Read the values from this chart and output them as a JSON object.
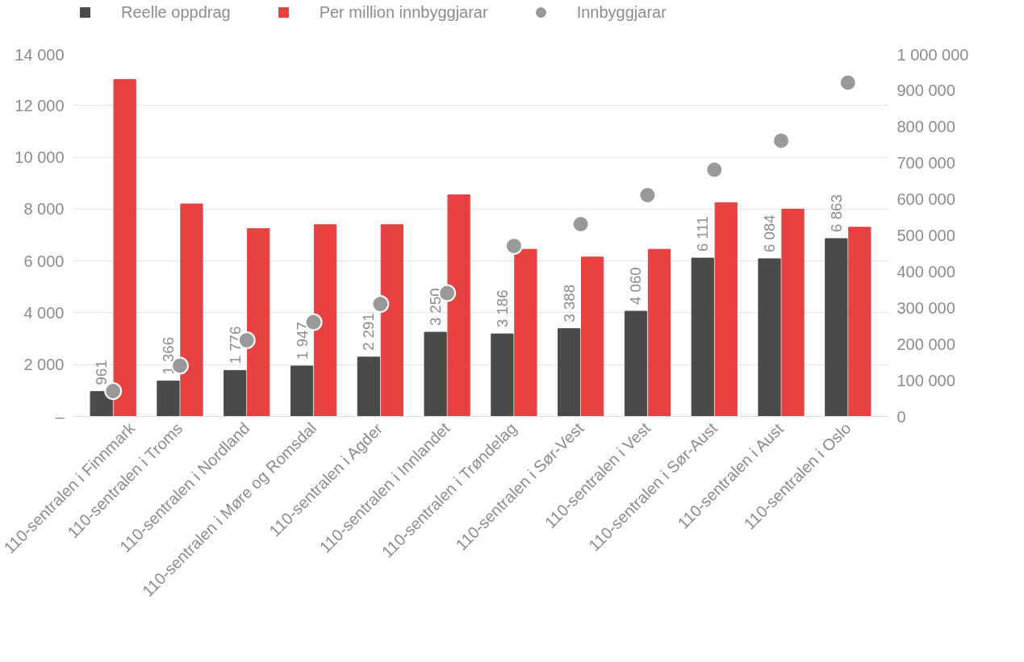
{
  "chart_data": {
    "type": "bar",
    "categories": [
      "110-sentralen i Finnmark",
      "110-sentralen i Troms",
      "110-sentralen i Nordland",
      "110-sentralen i Møre og Romsdal",
      "110-sentralen i Agder",
      "110-sentralen i Innlandet",
      "110-sentralen i Trøndelag",
      "110-sentralen i Sør-Vest",
      "110-sentralen i Vest",
      "110-sentralen i Sør-Aust",
      "110-sentralen i Aust",
      "110-sentralen i Oslo"
    ],
    "series": [
      {
        "name": "Reelle oppdrag",
        "color": "#4a4a48",
        "values": [
          961,
          1366,
          1776,
          1947,
          2291,
          3250,
          3186,
          3388,
          4060,
          6111,
          6084,
          6863
        ],
        "value_labels": [
          "961",
          "1 366",
          "1 776",
          "1 947",
          "2 291",
          "3 250",
          "3 186",
          "3 388",
          "4 060",
          "6 111",
          "6 084",
          "6 863"
        ]
      },
      {
        "name": "Per million innbyggjarar",
        "color": "#e84142",
        "values": [
          13000,
          8200,
          7250,
          7400,
          7400,
          8550,
          6450,
          6150,
          6450,
          8250,
          8000,
          7300
        ]
      },
      {
        "name": "Innbyggjarar",
        "color": "#999999",
        "type": "scatter",
        "axis": "y2",
        "marker": "circle",
        "values": [
          70000,
          140000,
          210000,
          260000,
          310000,
          340000,
          470000,
          530000,
          610000,
          680000,
          760000,
          920000
        ]
      }
    ],
    "ylim": [
      0,
      14000
    ],
    "yticks": [
      {
        "value": 0,
        "label": "–"
      },
      {
        "value": 2000,
        "label": "2 000"
      },
      {
        "value": 4000,
        "label": "4 000"
      },
      {
        "value": 6000,
        "label": "6 000"
      },
      {
        "value": 8000,
        "label": "8 000"
      },
      {
        "value": 10000,
        "label": "10 000"
      },
      {
        "value": 12000,
        "label": "12 000"
      },
      {
        "value": 14000,
        "label": "14 000"
      }
    ],
    "y2lim": [
      0,
      1000000
    ],
    "y2ticks": [
      0,
      {
        "value": 100000,
        "label": "100 000"
      },
      {
        "value": 200000,
        "label": "200 000"
      },
      {
        "value": 300000,
        "label": "300 000"
      },
      {
        "value": 400000,
        "label": "400 000"
      },
      {
        "value": 500000,
        "label": "500 000"
      },
      {
        "value": 600000,
        "label": "600 000"
      },
      {
        "value": 700000,
        "label": "700 000"
      },
      {
        "value": 800000,
        "label": "800 000"
      },
      {
        "value": 900000,
        "label": "900 000"
      },
      {
        "value": 1000000,
        "label": "1 000 000"
      }
    ],
    "grid": "y",
    "legend": "top left"
  }
}
